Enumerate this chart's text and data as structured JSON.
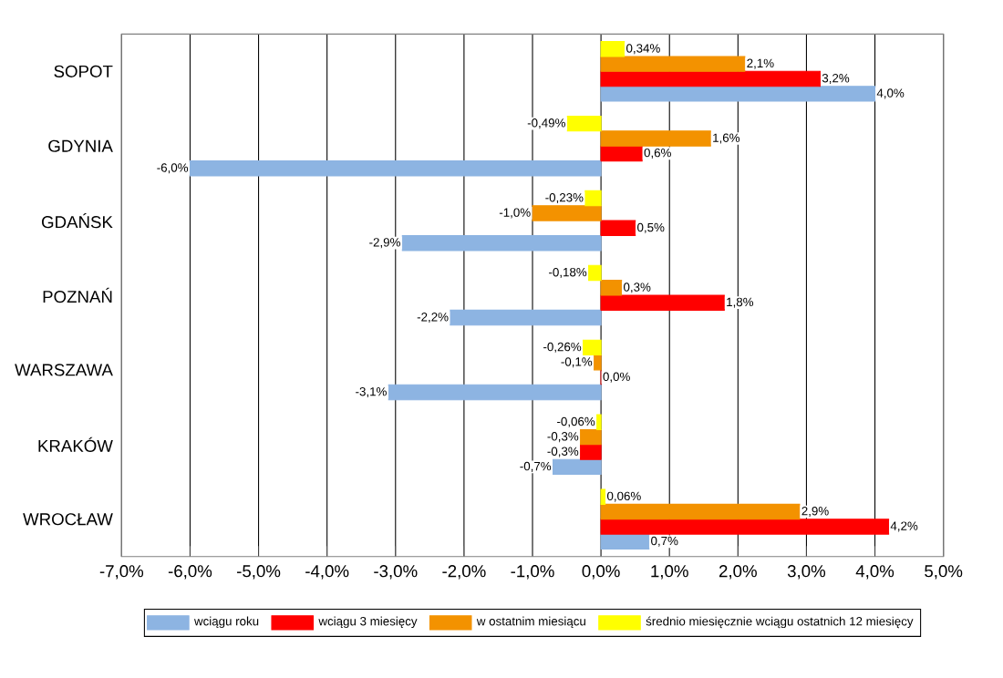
{
  "chart_data": {
    "type": "bar",
    "orientation": "horizontal",
    "categories": [
      "SOPOT",
      "GDYNIA",
      "GDAŃSK",
      "POZNAŃ",
      "WARSZAWA",
      "KRAKÓW",
      "WROCŁAW"
    ],
    "series": [
      {
        "name": "wciągu roku",
        "color": "#8db4e2",
        "values": [
          4.0,
          -6.0,
          -2.9,
          -2.2,
          -3.1,
          -0.7,
          0.7
        ],
        "value_labels": [
          "4,0%",
          "-6,0%",
          "-2,9%",
          "-2,2%",
          "-3,1%",
          "-0,7%",
          "0,7%"
        ]
      },
      {
        "name": "wciągu 3 miesięcy",
        "color": "#ff0000",
        "values": [
          3.2,
          0.6,
          0.5,
          1.8,
          0.0,
          -0.3,
          4.2
        ],
        "value_labels": [
          "3,2%",
          "0,6%",
          "0,5%",
          "1,8%",
          "0,0%",
          "-0,3%",
          "4,2%"
        ]
      },
      {
        "name": "w ostatnim miesiącu",
        "color": "#f39200",
        "values": [
          2.1,
          1.6,
          -1.0,
          0.3,
          -0.1,
          -0.3,
          2.9
        ],
        "value_labels": [
          "2,1%",
          "1,6%",
          "-1,0%",
          "0,3%",
          "-0,1%",
          "-0,3%",
          "2,9%"
        ]
      },
      {
        "name": "średnio miesięcznie wciągu ostatnich 12 miesięcy",
        "color": "#ffff00",
        "values": [
          0.34,
          -0.49,
          -0.23,
          -0.18,
          -0.26,
          -0.06,
          0.06
        ],
        "value_labels": [
          "0,34%",
          "-0,49%",
          "-0,23%",
          "-0,18%",
          "-0,26%",
          "-0,06%",
          "0,06%"
        ]
      }
    ],
    "xlim": [
      -7,
      5
    ],
    "xticks": [
      {
        "value": -7,
        "label": "-7,0%"
      },
      {
        "value": -6,
        "label": "-6,0%"
      },
      {
        "value": -5,
        "label": "-5,0%"
      },
      {
        "value": -4,
        "label": "-4,0%"
      },
      {
        "value": -3,
        "label": "-3,0%"
      },
      {
        "value": -2,
        "label": "-2,0%"
      },
      {
        "value": -1,
        "label": "-1,0%"
      },
      {
        "value": 0,
        "label": "0,0%"
      },
      {
        "value": 1,
        "label": "1,0%"
      },
      {
        "value": 2,
        "label": "2,0%"
      },
      {
        "value": 3,
        "label": "3,0%"
      },
      {
        "value": 4,
        "label": "4,0%"
      },
      {
        "value": 5,
        "label": "5,0%"
      }
    ],
    "grid": "x",
    "legend": "bottom"
  }
}
